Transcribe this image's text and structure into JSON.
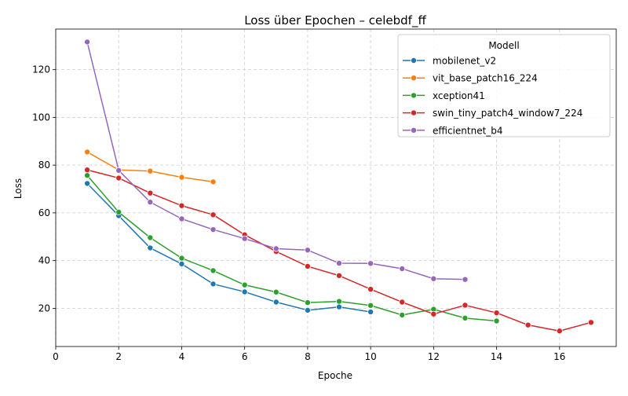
{
  "chart_data": {
    "type": "line",
    "title": "Loss über Epochen – celebdf_ff",
    "xlabel": "Epoche",
    "ylabel": "Loss",
    "xlim": [
      0,
      17.8
    ],
    "ylim": [
      4,
      137
    ],
    "xticks": [
      0,
      2,
      4,
      6,
      8,
      10,
      12,
      14,
      16
    ],
    "yticks": [
      20,
      40,
      60,
      80,
      100,
      120
    ],
    "grid": true,
    "grid_style": "dashed",
    "legend_title": "Modell",
    "legend_position": "top-right",
    "series": [
      {
        "name": "mobilenet_v2",
        "color": "#1f77b4",
        "x": [
          1,
          2,
          3,
          4,
          5,
          6,
          7,
          8,
          9,
          10
        ],
        "y": [
          72.3,
          58.8,
          45.3,
          38.6,
          30.2,
          26.9,
          22.6,
          19.2,
          20.6,
          18.5
        ]
      },
      {
        "name": "vit_base_patch16_224",
        "color": "#ff7f0e",
        "x": [
          1,
          2,
          3,
          4,
          5
        ],
        "y": [
          85.5,
          78.0,
          77.5,
          74.9,
          73.0
        ]
      },
      {
        "name": "xception41",
        "color": "#2ca02c",
        "x": [
          1,
          2,
          3,
          4,
          5,
          6,
          7,
          8,
          9,
          10,
          11,
          12,
          13,
          14
        ],
        "y": [
          75.7,
          60.3,
          49.6,
          41.0,
          35.8,
          29.8,
          26.8,
          22.4,
          22.9,
          21.2,
          17.2,
          19.6,
          15.9,
          14.7
        ]
      },
      {
        "name": "swin_tiny_patch4_window7_224",
        "color": "#d62728",
        "x": [
          1,
          2,
          3,
          4,
          5,
          6,
          7,
          8,
          9,
          10,
          11,
          12,
          13,
          14,
          15,
          16,
          17
        ],
        "y": [
          78.0,
          74.6,
          68.3,
          63.0,
          59.2,
          50.8,
          43.8,
          37.6,
          33.7,
          28.0,
          22.6,
          17.6,
          21.3,
          18.1,
          13.0,
          10.5,
          14.1
        ]
      },
      {
        "name": "efficientnet_b4",
        "color": "#9467bd",
        "x": [
          1,
          2,
          3,
          4,
          5,
          6,
          7,
          8,
          9,
          10,
          11,
          12,
          13
        ],
        "y": [
          131.6,
          77.8,
          64.5,
          57.5,
          53.0,
          49.2,
          45.0,
          44.4,
          38.9,
          38.8,
          36.6,
          32.4,
          32.1
        ]
      }
    ]
  }
}
